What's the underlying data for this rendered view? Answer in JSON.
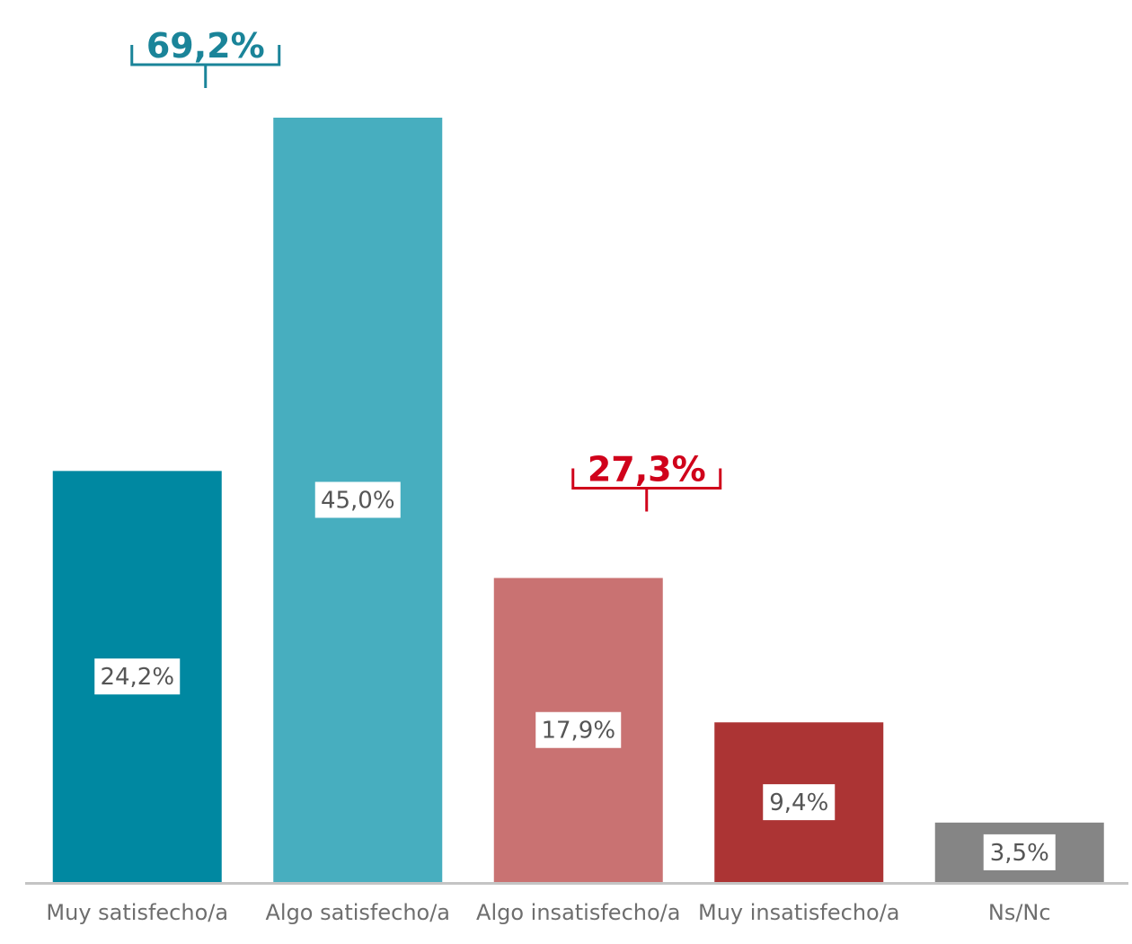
{
  "chart_data": {
    "type": "bar",
    "categories": [
      "Muy satisfecho/a",
      "Algo satisfecho/a",
      "Algo insatisfecho/a",
      "Muy insatisfecho/a",
      "Ns/Nc"
    ],
    "values": [
      24.2,
      45.0,
      17.9,
      9.4,
      3.5
    ],
    "value_labels": [
      "24,2%",
      "45,0%",
      "17,9%",
      "9,4%",
      "3,5%"
    ],
    "colors": [
      "#0088a1",
      "#47aebf",
      "#c97272",
      "#ac3434",
      "#858585"
    ],
    "ylim": [
      0,
      45.0
    ],
    "grid": false,
    "legend": "none",
    "annotations": [
      {
        "text": "69,2%",
        "categories": [
          0,
          1
        ],
        "color": "#1a8499"
      },
      {
        "text": "27,3%",
        "categories": [
          2,
          3
        ],
        "color": "#d0021b"
      }
    ]
  }
}
